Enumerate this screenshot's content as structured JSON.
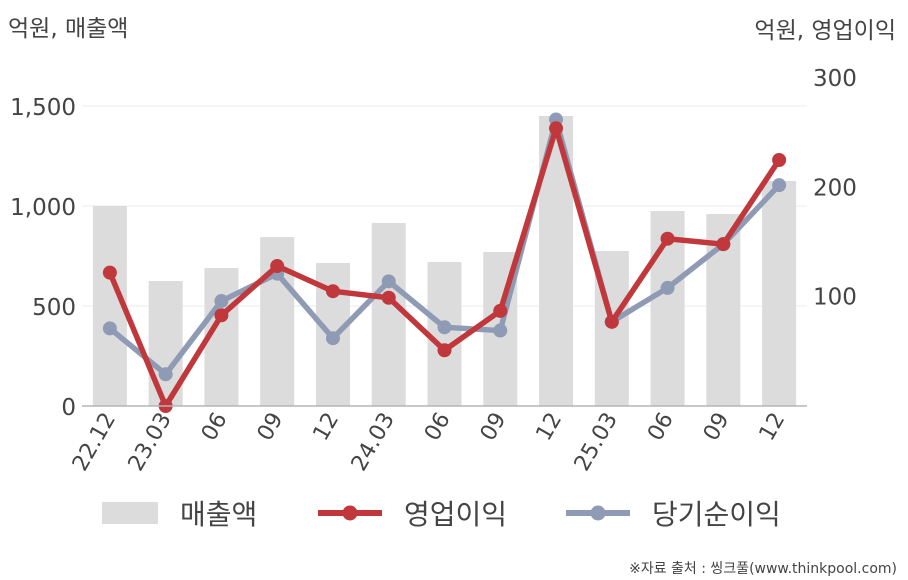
{
  "chart_data": {
    "type": "bar",
    "left_axis_title": "억원, 매출액",
    "right_axis_title": "억원, 영업이익",
    "categories": [
      "22.12",
      "23.03",
      "06",
      "09",
      "12",
      "24.03",
      "06",
      "09",
      "12",
      "25.03",
      "06",
      "09",
      "12"
    ],
    "left_axis": {
      "ylim": [
        0,
        1500
      ],
      "ticks": [
        "0",
        "500",
        "1,000",
        "1,500"
      ],
      "tick_values": [
        0,
        500,
        1000,
        1500
      ]
    },
    "right_axis": {
      "ylim": [
        0,
        300
      ],
      "ticks": [
        "100",
        "200",
        "300"
      ],
      "tick_values": [
        100,
        200,
        300
      ]
    },
    "series": [
      {
        "name": "매출액",
        "kind": "bar",
        "axis": "left",
        "color": "#dcdcdc",
        "values": [
          1000,
          625,
          690,
          845,
          715,
          915,
          720,
          770,
          1450,
          775,
          975,
          960,
          1125
        ]
      },
      {
        "name": "영업이익",
        "kind": "line",
        "axis": "right",
        "color": "#c0383c",
        "values": [
          122,
          0,
          83,
          128,
          105,
          99,
          51,
          87,
          254,
          77,
          153,
          148,
          225
        ]
      },
      {
        "name": "당기순이익",
        "kind": "line",
        "axis": "right",
        "color": "#8f9bb5",
        "values": [
          71,
          29,
          96,
          121,
          62,
          114,
          72,
          69,
          262,
          77,
          108,
          148,
          202
        ]
      }
    ],
    "legend": {
      "position": "bottom",
      "items": [
        "매출액",
        "영업이익",
        "당기순이익"
      ]
    },
    "grid": true,
    "source": "※자료 출처 : 씽크풀(www.thinkpool.com)"
  }
}
